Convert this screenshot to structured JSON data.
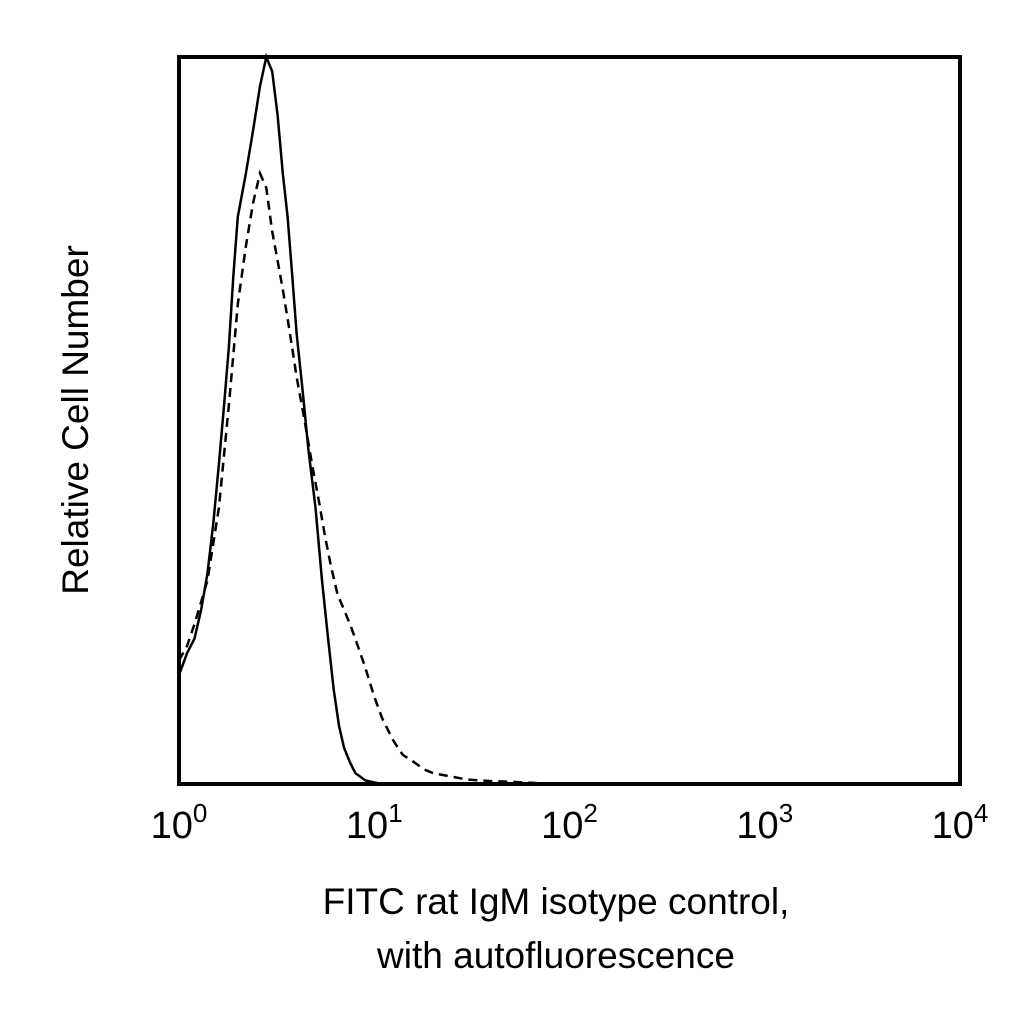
{
  "chart_data": {
    "type": "line",
    "title": "",
    "xlabel_lines": [
      "FITC rat IgM isotype control,",
      "with autofluorescence"
    ],
    "ylabel": "Relative Cell Number",
    "xscale": "log",
    "xlim": [
      1,
      10000
    ],
    "ylim": [
      0,
      100
    ],
    "x_ticks": [
      {
        "value": 1,
        "base": "10",
        "exp": "0"
      },
      {
        "value": 10,
        "base": "10",
        "exp": "1"
      },
      {
        "value": 100,
        "base": "10",
        "exp": "2"
      },
      {
        "value": 1000,
        "base": "10",
        "exp": "3"
      },
      {
        "value": 10000,
        "base": "10",
        "exp": "4"
      }
    ],
    "y_ticks_shown": false,
    "grid": false,
    "legend": "none",
    "series": [
      {
        "style": "solid",
        "color": "#000000",
        "x": [
          1.0,
          1.1,
          1.2,
          1.3,
          1.4,
          1.5,
          1.6,
          1.7,
          1.8,
          1.9,
          2.0,
          2.2,
          2.4,
          2.6,
          2.8,
          3.0,
          3.2,
          3.4,
          3.6,
          3.8,
          4.0,
          4.3,
          4.6,
          5.0,
          5.4,
          5.8,
          6.2,
          6.6,
          7.0,
          7.5,
          8.0,
          9.0,
          10.0,
          11.0
        ],
        "y": [
          15,
          18,
          20,
          24,
          29,
          36,
          44,
          52,
          60,
          70,
          78,
          84,
          90,
          96,
          100,
          98,
          92,
          84,
          78,
          70,
          62,
          54,
          46,
          38,
          28,
          20,
          13,
          8,
          5,
          3,
          1.5,
          0.5,
          0.2,
          0
        ]
      },
      {
        "style": "dashed",
        "color": "#000000",
        "x": [
          1.0,
          1.1,
          1.2,
          1.4,
          1.6,
          1.8,
          2.0,
          2.2,
          2.4,
          2.6,
          2.8,
          3.0,
          3.2,
          3.4,
          3.6,
          3.8,
          4.0,
          4.4,
          4.8,
          5.2,
          5.6,
          6.0,
          6.5,
          7.0,
          7.5,
          8.0,
          9.0,
          10.0,
          11.0,
          12.5,
          14.0,
          16.0,
          18.0,
          20.0,
          25.0,
          30.0,
          40.0,
          50.0,
          60.0,
          80.0
        ],
        "y": [
          17,
          19,
          22,
          28,
          38,
          52,
          66,
          74,
          80,
          84,
          82,
          76,
          72,
          68,
          64,
          60,
          56,
          50,
          44,
          39,
          34,
          30,
          26,
          24,
          22,
          20,
          16,
          12,
          9,
          6,
          4,
          3,
          2,
          1.5,
          1,
          0.6,
          0.4,
          0.3,
          0.2,
          0
        ]
      }
    ]
  }
}
